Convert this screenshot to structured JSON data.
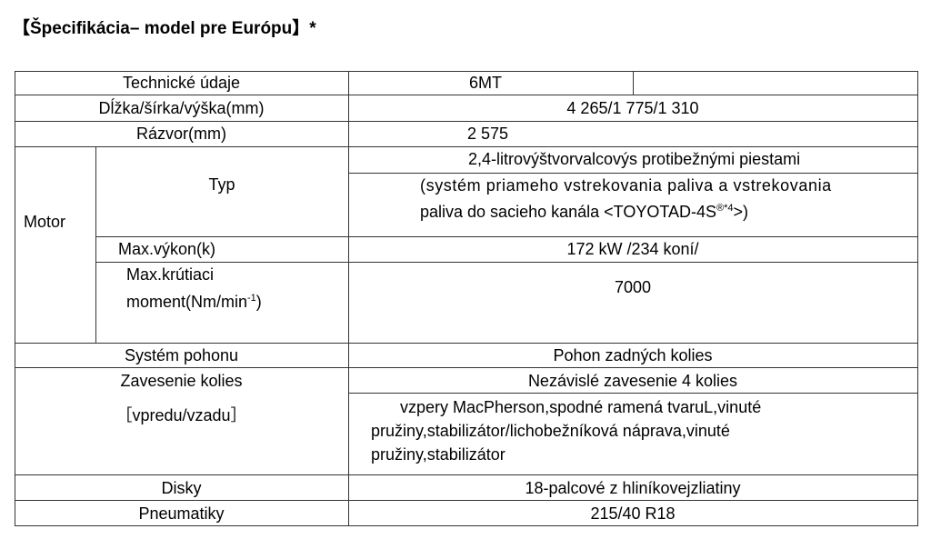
{
  "title": "【Špecifikácia– model pre Európu】*",
  "rows": {
    "header": {
      "label": "Technické údaje",
      "value": "6MT"
    },
    "dimensions": {
      "label": "Dĺžka/šírka/výška(mm)",
      "value": "4 265/1 775/1 310"
    },
    "wheelbase": {
      "label": "Rázvor(mm)",
      "value": "2 575"
    },
    "motor": {
      "label": "Motor",
      "type": {
        "label": "Typ",
        "value_line1": "2,4-litrovýštvorvalcovýs protibežnými piestami",
        "value_line2": "(systém priameho vstrekovania paliva a vstrekovania",
        "value_line3": "paliva do sacieho kanála <TOYOTAD-4S",
        "value_sup": "®*4",
        "value_end": ">)"
      },
      "power": {
        "label": "Max.výkon(k)",
        "value": "172 kW /234 koní/"
      },
      "torque": {
        "label_line1": "Max.krútiaci",
        "label_line2": "moment(Nm/min",
        "label_sup": "-1",
        "label_end": ")",
        "value": "7000"
      }
    },
    "drive": {
      "label": "Systém pohonu",
      "value": "Pohon zadných kolies"
    },
    "suspension": {
      "label_line1": "Zavesenie kolies",
      "label_line2": "［vpredu/vzadu］",
      "value_main": "Nezávislé zavesenie 4 kolies",
      "value_line1": "vzpery MacPherson,spodné ramená tvaruL,vinuté",
      "value_line2": "pružiny,stabilizátor/lichobežníková náprava,vinuté",
      "value_line3": "pružiny,stabilizátor"
    },
    "wheels": {
      "label": "Disky",
      "value": "18-palcové z hliníkovejzliatiny"
    },
    "tyres": {
      "label": "Pneumatiky",
      "value": "215/40 R18"
    }
  }
}
